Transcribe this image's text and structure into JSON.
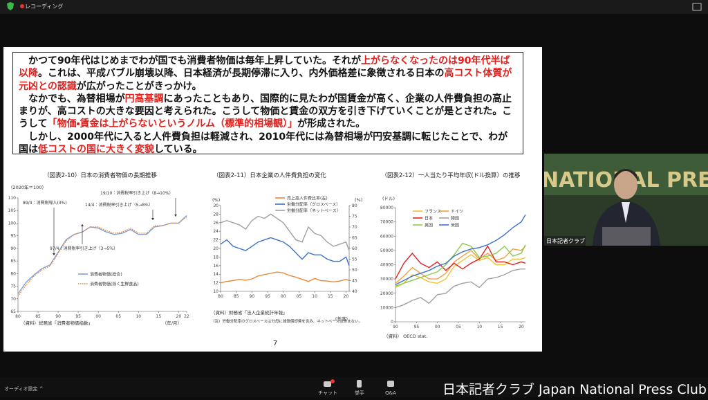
{
  "zoom": {
    "recording": "レコーディング",
    "audio": "オーディオ設定 ^",
    "buttons": [
      "チャット",
      "挙手",
      "Q&A"
    ],
    "brand": "日本記者クラブ Japan National Press Club"
  },
  "video": {
    "backdrop": "NATIONAL PRES",
    "name": "日本記者クラブ"
  },
  "slide": {
    "paragraphs": [
      [
        {
          "text": "かつて90年代はじめまでわが国でも消費者物価は毎年上昇していた。それが"
        },
        {
          "text": "上がらなくなったのは90年代半ば以降",
          "red": true
        },
        {
          "text": "。これは、平成バブル崩壊以降、日本経済が長期停滞に入り、内外価格差に象徴される日本の"
        },
        {
          "text": "高コスト体質が元凶との認識",
          "red": true
        },
        {
          "text": "が広がったことがきっかけ。"
        }
      ],
      [
        {
          "text": "なかでも、為替相場が"
        },
        {
          "text": "円高基調",
          "red": true
        },
        {
          "text": "にあったこともあり、国際的に見たわが国賃金が高く、企業の人件費負担の高止まりが、高コストの大きな要因と考えられた。こうして物価と賃金の双方を引き下げていくことが是とされた。こうして"
        },
        {
          "text": "「物価・賃金は上がらないというノルム（標準的相場観）」",
          "red": true
        },
        {
          "text": "が形成された。"
        }
      ],
      [
        {
          "text": "しかし、2000年代に入ると人件費負担は軽減され、2010年代には為替相場が円安基調に転じたことで、わが国は"
        },
        {
          "text": "低コストの国に大きく変貌",
          "red": true
        },
        {
          "text": "している。"
        }
      ]
    ],
    "page": "7"
  },
  "chart_data": [
    {
      "type": "line",
      "title": "（図表2-10）日本の消費者物価の長期推移",
      "ylabel": "（2020年＝100）",
      "xlabel": "（年/月）",
      "source": "（資料）総務省「消費者物価指数」",
      "annotations": [
        "89/4：消費税導入(3%)",
        "97/4：消費税率引き上げ（3→5％）",
        "14/4：消費税率引き上げ（5→8%）",
        "19/10：消費税率引き上げ（8→10%）"
      ],
      "x": [
        1980,
        1982,
        1984,
        1986,
        1988,
        1990,
        1992,
        1994,
        1996,
        1998,
        2000,
        2002,
        2004,
        2006,
        2008,
        2010,
        2012,
        2014,
        2016,
        2018,
        2020,
        2022
      ],
      "series": [
        {
          "name": "消費者物価(総合)",
          "color": "#7f9fd8",
          "style": "solid",
          "values": [
            72,
            76.5,
            79.5,
            82,
            83.5,
            88.5,
            93.5,
            95.5,
            96.5,
            98.5,
            98,
            96.5,
            95.5,
            96,
            97.5,
            95.5,
            95.5,
            98.5,
            99,
            100,
            100,
            103
          ]
        },
        {
          "name": "消費者物価(除く生鮮食品)",
          "color": "#e8893a",
          "style": "dotted",
          "values": [
            71,
            75.5,
            79,
            81.5,
            83,
            88,
            93,
            95.5,
            96.5,
            98.5,
            98.5,
            97,
            96,
            96.5,
            98,
            96,
            96,
            99,
            99,
            100,
            100,
            102.5
          ]
        }
      ],
      "xlim": [
        1980,
        2022
      ],
      "ylim": [
        65,
        110
      ],
      "xticks": [
        {
          "value": 1980,
          "label": "80"
        },
        {
          "value": 1985,
          "label": "85"
        },
        {
          "value": 1990,
          "label": "90"
        },
        {
          "value": 1995,
          "label": "95"
        },
        {
          "value": 2000,
          "label": "00"
        },
        {
          "value": 2005,
          "label": "05"
        },
        {
          "value": 2010,
          "label": "10"
        },
        {
          "value": 2015,
          "label": "15"
        },
        {
          "value": 2020,
          "label": "20"
        },
        {
          "value": 2022,
          "label": "22"
        }
      ],
      "yticks": [
        65,
        70,
        75,
        80,
        85,
        90,
        95,
        100,
        105,
        110
      ]
    },
    {
      "type": "line",
      "title": "（図表2-11）日本企業の人件費負担の変化",
      "ylabel": "(%)",
      "y2label": "(%)",
      "xlabel": "(年度)",
      "source": "（資料）財務省「法人企業統計年報」",
      "note": "（注）労働分配率のグロスベースは分母に減価償却費を含み、ネットベースは含まない。",
      "x": [
        1980,
        1982,
        1984,
        1986,
        1988,
        1990,
        1992,
        1994,
        1996,
        1998,
        2000,
        2002,
        2004,
        2006,
        2008,
        2010,
        2012,
        2014,
        2016,
        2018,
        2020,
        2021
      ],
      "series": [
        {
          "name": "売上高人件費比率(左)",
          "color": "#e8893a",
          "values": [
            12,
            12.3,
            12.5,
            12.8,
            12.6,
            12.9,
            13.6,
            13.9,
            14.2,
            14.5,
            14.3,
            13.7,
            13.3,
            12.8,
            12.3,
            13.0,
            12.5,
            12.4,
            12.2,
            12.4,
            12.8,
            12.5
          ]
        },
        {
          "name": "労働分配率（グロスベース）",
          "color": "#3c6fc4",
          "axis": "y2",
          "values": [
            62,
            64,
            61,
            60,
            59,
            61,
            63,
            64,
            65,
            64,
            63,
            61,
            58,
            55,
            58,
            57,
            57,
            55,
            54,
            54,
            56,
            52
          ]
        },
        {
          "name": "労働分配率（ネットベース）",
          "color": "#a0a0a0",
          "axis": "y2",
          "values": [
            72,
            73,
            72,
            71,
            69,
            73,
            75,
            74,
            76,
            74,
            72,
            68,
            64,
            63,
            70,
            67,
            66,
            63,
            61,
            62,
            63,
            59
          ]
        }
      ],
      "xlim": [
        1980,
        2021
      ],
      "ylim": [
        10,
        30
      ],
      "y2lim": [
        40,
        80
      ],
      "xticks": [
        {
          "value": 1980,
          "label": "80"
        },
        {
          "value": 1985,
          "label": "85"
        },
        {
          "value": 1990,
          "label": "90"
        },
        {
          "value": 1995,
          "label": "95"
        },
        {
          "value": 2000,
          "label": "00"
        },
        {
          "value": 2005,
          "label": "05"
        },
        {
          "value": 2010,
          "label": "10"
        },
        {
          "value": 2015,
          "label": "15"
        },
        {
          "value": 2020,
          "label": "20"
        }
      ],
      "yticks": [
        10,
        12,
        14,
        16,
        18,
        20,
        22,
        24,
        26,
        28,
        30
      ],
      "y2ticks": [
        40,
        45,
        50,
        55,
        60,
        65,
        70,
        75,
        80
      ]
    },
    {
      "type": "line",
      "title": "（図表2-12）一人当たり平均年収(ドル換算）の推移",
      "ylabel": "(ドル)",
      "source": "（資料） OECD stat.",
      "x": [
        1990,
        1992,
        1994,
        1996,
        1998,
        2000,
        2002,
        2004,
        2006,
        2008,
        2010,
        2012,
        2014,
        2016,
        2018,
        2020,
        2021
      ],
      "series": [
        {
          "name": "フランス",
          "color": "#f2c230",
          "values": [
            24000,
            27000,
            33000,
            31000,
            28000,
            27000,
            30000,
            39000,
            43000,
            47000,
            43000,
            45000,
            40000,
            40000,
            44000,
            44000,
            45000
          ]
        },
        {
          "name": "ドイツ",
          "color": "#f0a040",
          "values": [
            27000,
            32000,
            38000,
            34000,
            30000,
            30000,
            34000,
            42000,
            46000,
            50000,
            44000,
            48000,
            43000,
            45000,
            51000,
            50000,
            53000
          ]
        },
        {
          "name": "日本",
          "color": "#e02020",
          "values": [
            30000,
            41000,
            48000,
            41000,
            38000,
            42000,
            36000,
            41000,
            37000,
            41000,
            44000,
            53000,
            42000,
            42000,
            40000,
            42000,
            41000
          ]
        },
        {
          "name": "韓国",
          "color": "#a0a0a0",
          "values": [
            10000,
            12000,
            15000,
            17000,
            13000,
            19000,
            20000,
            25000,
            27000,
            28000,
            24000,
            30000,
            31000,
            33000,
            36000,
            37000,
            37000
          ]
        },
        {
          "name": "英国",
          "color": "#8cc850",
          "values": [
            25000,
            27000,
            29000,
            31000,
            33000,
            35000,
            40000,
            47000,
            55000,
            53000,
            45000,
            46000,
            48000,
            53000,
            46000,
            48000,
            54000
          ]
        },
        {
          "name": "米国",
          "color": "#3a70d0",
          "values": [
            26000,
            29000,
            32000,
            34000,
            36000,
            39000,
            41000,
            46000,
            49000,
            51000,
            52000,
            54000,
            57000,
            61000,
            66000,
            70000,
            75000
          ]
        }
      ],
      "xlim": [
        1990,
        2021
      ],
      "ylim": [
        0,
        80000
      ],
      "xticks": [
        {
          "value": 1990,
          "label": "90"
        },
        {
          "value": 1995,
          "label": "95"
        },
        {
          "value": 2000,
          "label": "00"
        },
        {
          "value": 2005,
          "label": "05"
        },
        {
          "value": 2010,
          "label": "10"
        },
        {
          "value": 2015,
          "label": "15"
        },
        {
          "value": 2020,
          "label": "20"
        }
      ],
      "yticks": [
        0,
        10000,
        20000,
        30000,
        40000,
        50000,
        60000,
        70000,
        80000
      ]
    }
  ]
}
